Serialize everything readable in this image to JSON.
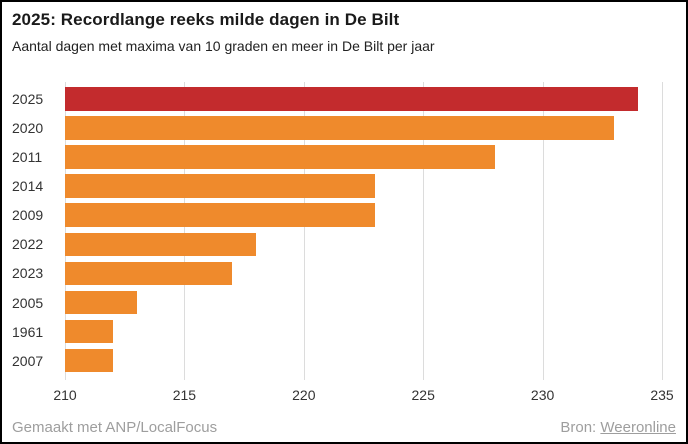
{
  "header": {
    "title": "2025: Recordlange reeks milde dagen in De Bilt",
    "subtitle": "Aantal dagen met maxima van 10 graden en meer in De Bilt per jaar"
  },
  "footer": {
    "credit": "Gemaakt met ANP/LocalFocus",
    "source_label": "Bron: ",
    "source_link": "Weeronline"
  },
  "chart_data": {
    "type": "bar",
    "orientation": "horizontal",
    "title": "2025: Recordlange reeks milde dagen in De Bilt",
    "subtitle": "Aantal dagen met maxima van 10 graden en meer in De Bilt per jaar",
    "categories": [
      "2025",
      "2020",
      "2011",
      "2014",
      "2009",
      "2022",
      "2023",
      "2005",
      "1961",
      "2007"
    ],
    "values": [
      234,
      233,
      228,
      223,
      223,
      218,
      217,
      213,
      212,
      212
    ],
    "xlabel": "",
    "ylabel": "",
    "xlim": [
      210,
      235
    ],
    "xticks": [
      210,
      215,
      220,
      225,
      230,
      235
    ],
    "grid": true,
    "legend": false,
    "colors": {
      "highlight": "#c32b2d",
      "default": "#ef8a2c",
      "highlight_index": 0,
      "gridline": "#dcdcdc",
      "axis_text": "#333333",
      "footer_text": "#9e9e9e"
    }
  }
}
